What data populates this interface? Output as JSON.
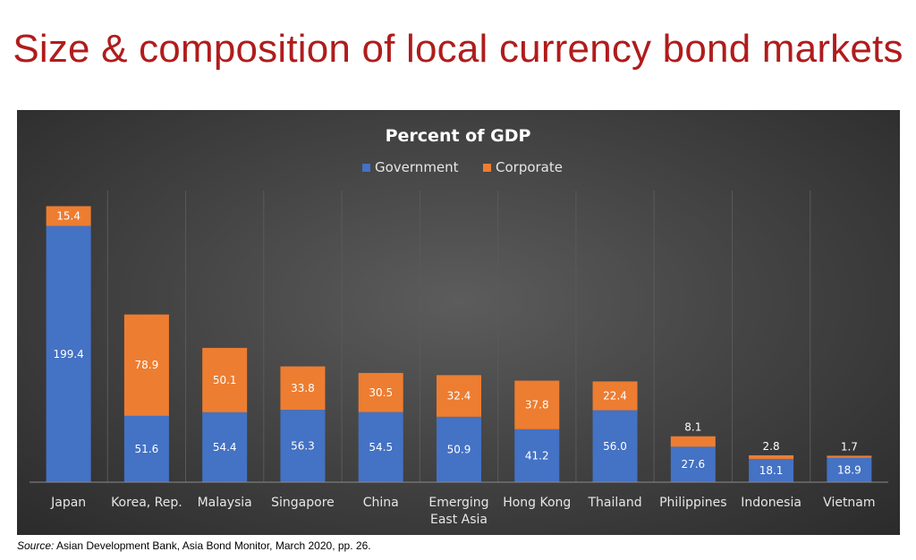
{
  "slide": {
    "title": "Size & composition of local currency bond markets",
    "source_label": "Source:",
    "source_text": " Asian Development Bank, Asia Bond Monitor, March 2020, pp. 26."
  },
  "colors": {
    "government": "#4472c4",
    "corporate": "#ed7d31",
    "panel_background": "#404040",
    "title_red": "#b01c1c"
  },
  "chart_data": {
    "type": "bar",
    "stacked": true,
    "title": "Percent of GDP",
    "xlabel": "",
    "ylabel": "",
    "ylim": [
      0,
      220
    ],
    "grid": "vertical",
    "legend": "top-center",
    "categories": [
      "Japan",
      "Korea, Rep.",
      "Malaysia",
      "Singapore",
      "China",
      "Emerging East Asia",
      "Hong Kong",
      "Thailand",
      "Philippines",
      "Indonesia",
      "Vietnam"
    ],
    "category_lines": [
      [
        "Japan"
      ],
      [
        "Korea, Rep."
      ],
      [
        "Malaysia"
      ],
      [
        "Singapore"
      ],
      [
        "China"
      ],
      [
        "Emerging",
        "East Asia"
      ],
      [
        "Hong Kong"
      ],
      [
        "Thailand"
      ],
      [
        "Philippines"
      ],
      [
        "Indonesia"
      ],
      [
        "Vietnam"
      ]
    ],
    "series": [
      {
        "name": "Government",
        "color": "#4472c4",
        "values": [
          199.4,
          51.6,
          54.4,
          56.3,
          54.5,
          50.9,
          41.2,
          56.0,
          27.6,
          18.1,
          18.9
        ]
      },
      {
        "name": "Corporate",
        "color": "#ed7d31",
        "values": [
          15.4,
          78.9,
          50.1,
          33.8,
          30.5,
          32.4,
          37.8,
          22.4,
          8.1,
          2.8,
          1.7
        ]
      }
    ]
  }
}
